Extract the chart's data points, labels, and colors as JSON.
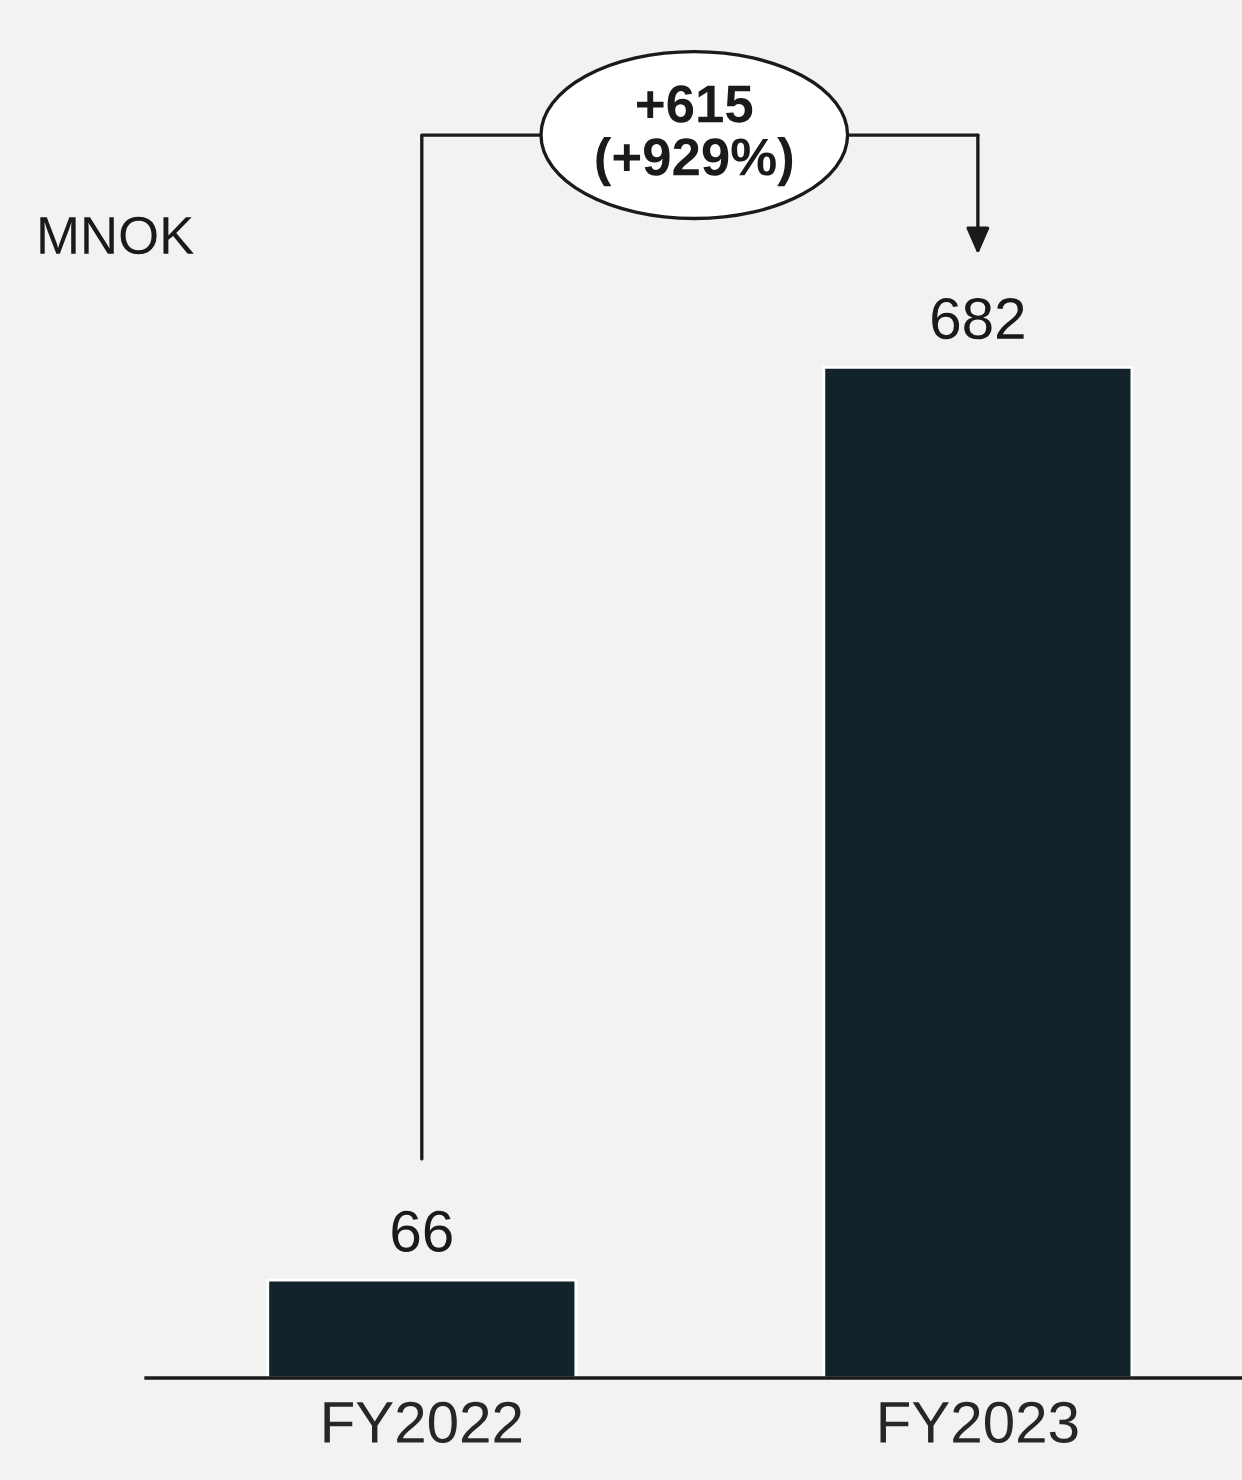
{
  "chart_data": {
    "type": "bar",
    "categories": [
      "FY2022",
      "FY2023"
    ],
    "values": [
      66,
      682
    ],
    "color": "#12232b",
    "ylabel": "MNOK",
    "ylim": [
      0,
      930
    ],
    "tick_labels": "x",
    "data_labels": true,
    "grid": false,
    "legend": false,
    "annotations": [
      "+615\n(+929%)"
    ]
  }
}
